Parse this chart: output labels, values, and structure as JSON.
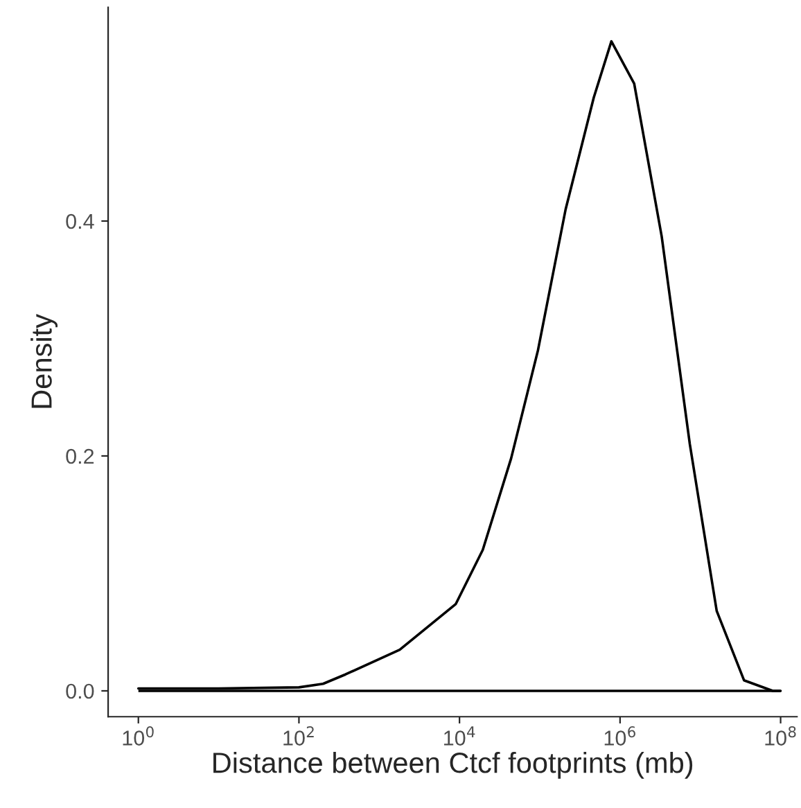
{
  "chart_data": {
    "type": "line",
    "ref_lines": [
      {
        "axis": "y",
        "value": 0,
        "color": "#000000"
      }
    ],
    "xlabel": "Distance between Ctcf footprints (mb)",
    "ylabel": "Density",
    "log": "x",
    "x": [
      1,
      10,
      100,
      200,
      380,
      1800,
      9000,
      19500,
      44000,
      95000,
      210000,
      470000,
      780000,
      1500000,
      3300000,
      7400000,
      16000000,
      35000000,
      80000000,
      100000000
    ],
    "series": [
      {
        "color": "#000000",
        "values": [
          0.002,
          0.002,
          0.003,
          0.006,
          0.014,
          0.035,
          0.074,
          0.12,
          0.198,
          0.29,
          0.41,
          0.505,
          0.553,
          0.517,
          0.387,
          0.21,
          0.068,
          0.009,
          0.0,
          0.0
        ]
      }
    ],
    "xlim": [
      0.42,
      160000000
    ],
    "ylim": [
      -0.022,
      0.582
    ],
    "xticks": [
      {
        "value": 1,
        "label": "10$^{0}$"
      },
      {
        "value": 100,
        "label": "10$^{2}$"
      },
      {
        "value": 10000,
        "label": "10$^{4}$"
      },
      {
        "value": 1000000,
        "label": "10$^{6}$"
      },
      {
        "value": 100000000,
        "label": "10$^{8}$"
      }
    ],
    "yticks": [
      {
        "value": 0,
        "label": "0.0"
      },
      {
        "value": 0.2,
        "label": "0.2"
      },
      {
        "value": 0.4,
        "label": "0.4"
      }
    ],
    "grid": false,
    "legend": false
  }
}
